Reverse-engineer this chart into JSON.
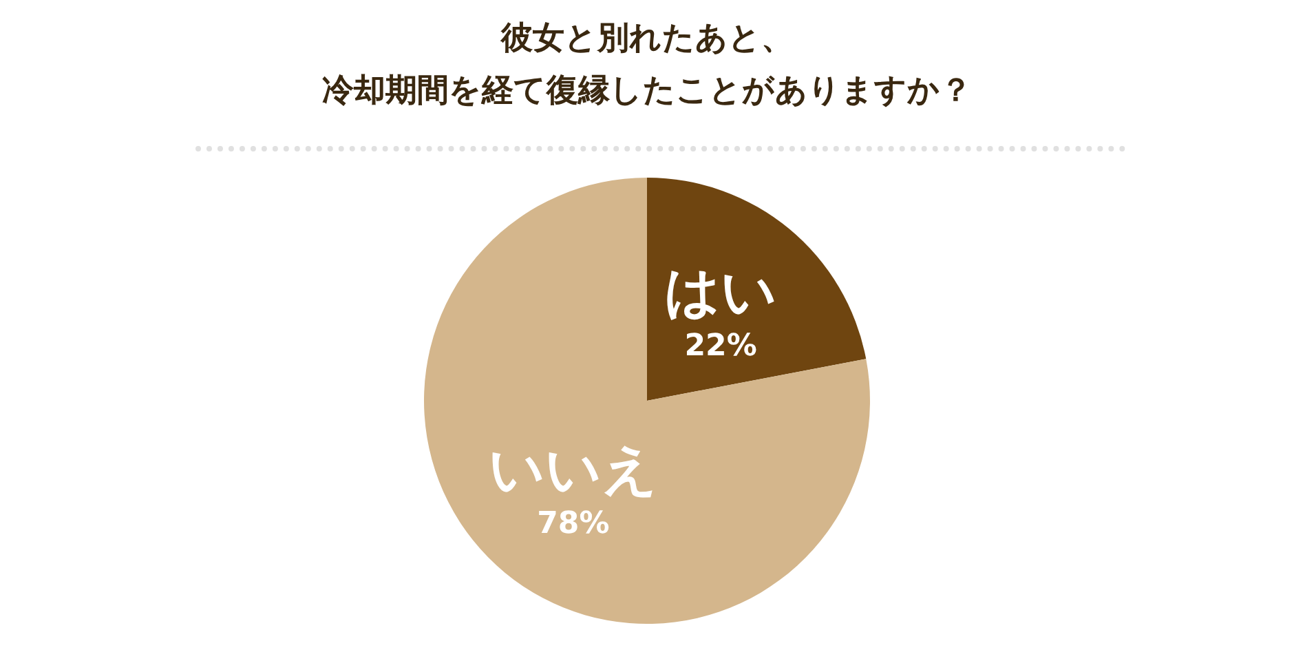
{
  "chart_data": {
    "type": "pie",
    "title": "彼女と別れたあと、",
    "subtitle": "冷却期間を経て復縁したことがありますか？",
    "categories": [
      "はい",
      "いいえ"
    ],
    "values": [
      22,
      78
    ],
    "value_labels": [
      "22%",
      "78%"
    ],
    "colors": [
      "#6f4510",
      "#d4b68c"
    ],
    "legend": false
  }
}
